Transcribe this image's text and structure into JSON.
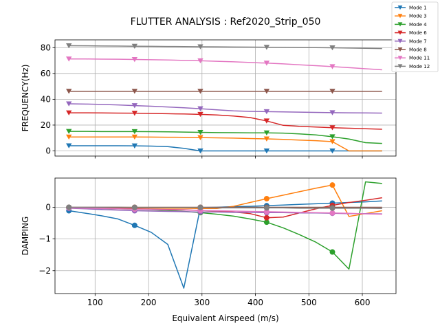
{
  "chart_data": {
    "type": "line",
    "title": "FLUTTER ANALYSIS : Ref2020_Strip_050",
    "xlabel": "Equivalent Airspeed (m/s)",
    "legend_position": "top-right",
    "grid": true,
    "x_ticks": [
      "100",
      "200",
      "300",
      "400",
      "500",
      "600"
    ],
    "x": [
      51,
      83,
      112,
      143,
      174,
      205,
      236,
      266,
      297,
      328,
      359,
      390,
      421,
      452,
      482,
      513,
      544,
      575,
      606,
      637
    ],
    "markers_at": [
      51,
      174,
      297,
      421,
      544
    ],
    "xlim": [
      25,
      663
    ],
    "subplots": [
      {
        "name": "frequency",
        "ylabel": "FREQUENCY(Hz)",
        "ylim": [
          -4,
          86
        ],
        "y_ticks": [
          "0",
          "20",
          "40",
          "60",
          "80"
        ],
        "y_tick_values": [
          0,
          20,
          40,
          60,
          80
        ],
        "marker": "triangle-down",
        "series": [
          {
            "name": "Mode 1",
            "color": "#1f77b4",
            "values": [
              4.0,
              4.0,
              4.0,
              4.0,
              3.9,
              3.7,
              3.3,
              2.0,
              0.0,
              0.0,
              0.0,
              0.0,
              0.0,
              0.0,
              0.0,
              0.0,
              0.0,
              0.0,
              0.0,
              0.0
            ]
          },
          {
            "name": "Mode 3",
            "color": "#ff7f0e",
            "values": [
              10.8,
              10.8,
              10.8,
              10.8,
              10.8,
              10.7,
              10.6,
              10.5,
              10.3,
              10.1,
              9.9,
              9.6,
              9.3,
              8.9,
              8.4,
              7.9,
              7.2,
              0.0,
              0.0,
              0.0
            ]
          },
          {
            "name": "Mode 4",
            "color": "#2ca02c",
            "values": [
              15.1,
              15.1,
              15.0,
              15.0,
              15.0,
              14.9,
              14.8,
              14.6,
              14.4,
              14.2,
              14.1,
              14.0,
              14.0,
              13.8,
              13.2,
              12.4,
              11.0,
              9.2,
              6.4,
              5.8
            ]
          },
          {
            "name": "Mode 6",
            "color": "#d62728",
            "values": [
              29.5,
              29.5,
              29.4,
              29.3,
              29.2,
              29.0,
              28.8,
              28.6,
              28.3,
              27.8,
              27.0,
              25.8,
              23.2,
              19.8,
              19.0,
              18.5,
              18.0,
              17.6,
              17.2,
              16.8
            ]
          },
          {
            "name": "Mode 7",
            "color": "#9467bd",
            "values": [
              36.5,
              36.3,
              36.0,
              35.6,
              35.1,
              34.6,
              34.0,
              33.4,
              32.7,
              31.8,
              31.0,
              30.6,
              30.4,
              30.2,
              30.0,
              29.8,
              29.6,
              29.5,
              29.4,
              29.3
            ]
          },
          {
            "name": "Mode 8",
            "color": "#8c564b",
            "values": [
              46.2,
              46.2,
              46.2,
              46.2,
              46.2,
              46.2,
              46.2,
              46.2,
              46.2,
              46.2,
              46.2,
              46.2,
              46.2,
              46.2,
              46.2,
              46.2,
              46.2,
              46.2,
              46.2,
              46.2
            ]
          },
          {
            "name": "Mode 11",
            "color": "#e377c2",
            "values": [
              71.2,
              71.2,
              71.1,
              71.0,
              70.8,
              70.6,
              70.4,
              70.1,
              69.8,
              69.4,
              69.0,
              68.5,
              68.0,
              67.4,
              66.7,
              66.0,
              65.3,
              64.5,
              63.6,
              62.8
            ]
          },
          {
            "name": "Mode 12",
            "color": "#7f7f7f",
            "values": [
              81.5,
              81.4,
              81.3,
              81.2,
              81.1,
              81.0,
              80.9,
              80.8,
              80.7,
              80.6,
              80.5,
              80.4,
              80.3,
              80.2,
              80.1,
              80.0,
              79.9,
              79.7,
              79.5,
              79.3
            ]
          }
        ]
      },
      {
        "name": "damping",
        "ylabel": "DAMPING",
        "ylim": [
          -2.72,
          0.92
        ],
        "y_ticks": [
          "−2",
          "−1",
          "0"
        ],
        "y_tick_values": [
          -2,
          -1,
          0
        ],
        "marker": "circle",
        "series": [
          {
            "name": "Mode 1",
            "color": "#1f77b4",
            "values": [
              -0.11,
              -0.19,
              -0.27,
              -0.37,
              -0.57,
              -0.79,
              -1.17,
              -2.55,
              -0.01,
              0.0,
              0.02,
              0.03,
              0.05,
              0.07,
              0.09,
              0.11,
              0.13,
              0.15,
              0.17,
              0.2
            ]
          },
          {
            "name": "Mode 3",
            "color": "#ff7f0e",
            "values": [
              -0.01,
              -0.01,
              -0.01,
              -0.02,
              -0.02,
              -0.02,
              -0.03,
              -0.03,
              -0.04,
              -0.04,
              0.03,
              0.15,
              0.27,
              0.38,
              0.49,
              0.6,
              0.7,
              -0.29,
              -0.2,
              -0.11
            ]
          },
          {
            "name": "Mode 4",
            "color": "#2ca02c",
            "values": [
              -0.02,
              -0.03,
              -0.04,
              -0.05,
              -0.06,
              -0.08,
              -0.1,
              -0.13,
              -0.17,
              -0.22,
              -0.28,
              -0.37,
              -0.47,
              -0.65,
              -0.86,
              -1.1,
              -1.41,
              -1.95,
              0.8,
              0.75
            ]
          },
          {
            "name": "Mode 6",
            "color": "#d62728",
            "values": [
              -0.02,
              -0.02,
              -0.03,
              -0.04,
              -0.05,
              -0.06,
              -0.07,
              -0.08,
              -0.1,
              -0.12,
              -0.15,
              -0.2,
              -0.33,
              -0.31,
              -0.18,
              -0.05,
              0.06,
              0.15,
              0.22,
              0.3
            ]
          },
          {
            "name": "Mode 7",
            "color": "#9467bd",
            "values": [
              -0.03,
              -0.05,
              -0.07,
              -0.09,
              -0.11,
              -0.12,
              -0.13,
              -0.14,
              -0.15,
              -0.15,
              -0.16,
              -0.16,
              -0.17,
              -0.17,
              -0.18,
              -0.18,
              -0.19,
              -0.2,
              -0.2,
              -0.21
            ]
          },
          {
            "name": "Mode 8",
            "color": "#8c564b",
            "values": [
              0.0,
              0.0,
              0.0,
              0.0,
              0.0,
              0.0,
              0.0,
              0.0,
              0.0,
              0.0,
              0.0,
              0.0,
              0.0,
              0.0,
              0.0,
              0.0,
              0.0,
              0.0,
              0.0,
              0.0
            ]
          },
          {
            "name": "Mode 11",
            "color": "#e377c2",
            "values": [
              -0.02,
              -0.03,
              -0.04,
              -0.05,
              -0.06,
              -0.07,
              -0.08,
              -0.09,
              -0.1,
              -0.11,
              -0.12,
              -0.13,
              -0.14,
              -0.15,
              -0.16,
              -0.17,
              -0.18,
              -0.19,
              -0.21,
              -0.22
            ]
          },
          {
            "name": "Mode 12",
            "color": "#7f7f7f",
            "values": [
              0.0,
              0.0,
              0.0,
              0.0,
              -0.01,
              -0.01,
              -0.01,
              -0.01,
              -0.01,
              -0.02,
              -0.02,
              -0.02,
              -0.02,
              -0.02,
              -0.03,
              -0.03,
              -0.03,
              -0.03,
              -0.03,
              -0.04
            ]
          }
        ]
      }
    ]
  }
}
